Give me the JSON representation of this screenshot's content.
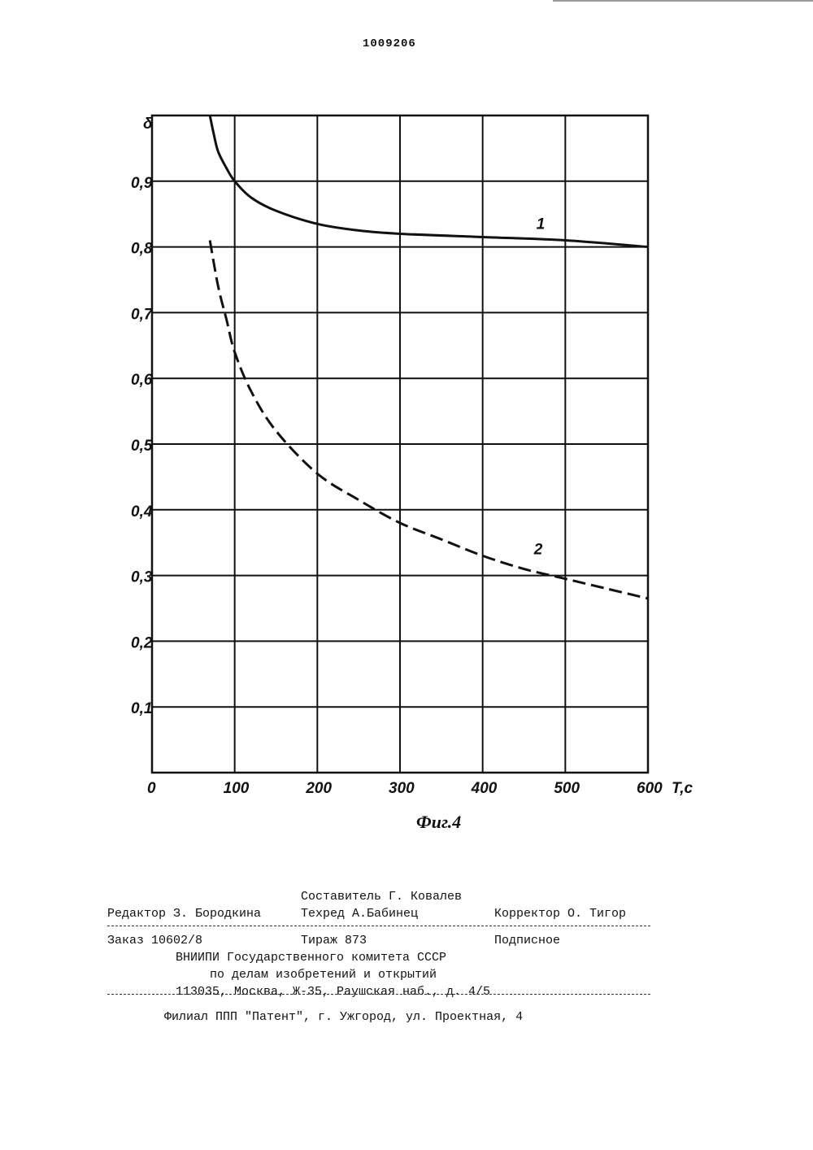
{
  "page_number": "1009206",
  "chart_data": {
    "type": "line",
    "ylabel": "δ",
    "xlabel": "T,c",
    "figure_caption": "Фиг.4",
    "xlim": [
      0,
      600
    ],
    "ylim": [
      0,
      1.0
    ],
    "x_ticks": [
      "0",
      "100",
      "200",
      "300",
      "400",
      "500",
      "600"
    ],
    "y_ticks": [
      "0,1",
      "0,2",
      "0,3",
      "0,4",
      "0,5",
      "0,6",
      "0,7",
      "0,8",
      "0,9"
    ],
    "grid": true,
    "series": [
      {
        "name": "1",
        "style": "solid",
        "x": [
          70,
          75,
          80,
          90,
          100,
          120,
          150,
          200,
          250,
          300,
          400,
          500,
          600
        ],
        "y": [
          1.0,
          0.97,
          0.945,
          0.92,
          0.9,
          0.875,
          0.855,
          0.835,
          0.825,
          0.82,
          0.815,
          0.81,
          0.8
        ]
      },
      {
        "name": "2",
        "style": "dashed",
        "x": [
          70,
          80,
          90,
          100,
          120,
          150,
          200,
          250,
          300,
          350,
          400,
          450,
          500,
          550,
          600
        ],
        "y": [
          0.81,
          0.74,
          0.69,
          0.64,
          0.58,
          0.52,
          0.455,
          0.415,
          0.38,
          0.355,
          0.33,
          0.31,
          0.295,
          0.28,
          0.265
        ]
      }
    ]
  },
  "footer": {
    "compiler": "Составитель Г. Ковалев",
    "editor": "Редактор З. Бородкина",
    "techred": "Техред А.Бабинец",
    "corrector": "Корректор О. Тигор",
    "order": "Заказ 10602/8",
    "circulation": "Тираж 873",
    "subscription": "Подписное",
    "org_line1": "ВНИИПИ Государственного комитета СССР",
    "org_line2": "по делам изобретений и открытий",
    "org_line3": "113035, Москва, Ж-35, Раушская наб., д. 4/5",
    "branch": "Филиал ППП \"Патент\", г. Ужгород, ул. Проектная, 4"
  }
}
